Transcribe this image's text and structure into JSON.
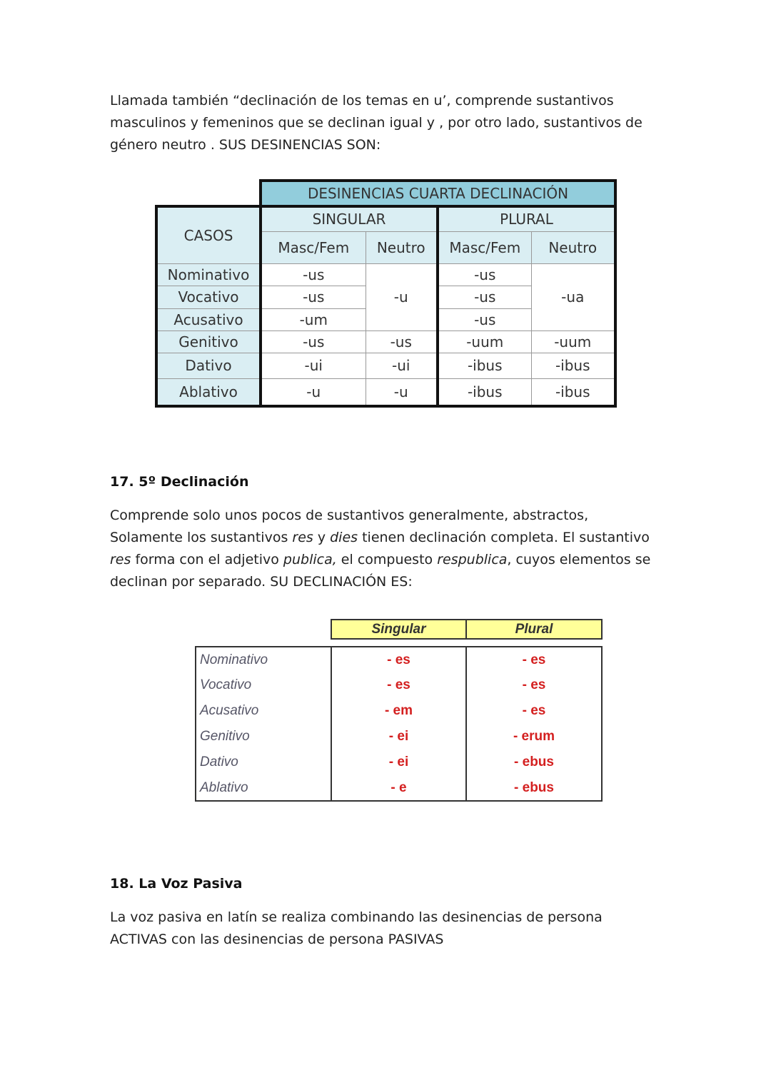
{
  "intro": "Llamada también “declinación de los temas en u’, comprende sustantivos masculinos y femeninos que se declinan igual y , por otro lado, sustantivos de género neutro . SUS DESINENCIAS SON:",
  "table1": {
    "title": "DESINENCIAS CUARTA DECLINACIÓN",
    "cases_header": "CASOS",
    "singular": "SINGULAR",
    "plural": "PLURAL",
    "subheaders": [
      "Masc/Fem",
      "Neutro",
      "Masc/Fem",
      "Neutro"
    ],
    "cases": [
      "Nominativo",
      "Vocativo",
      "Acusativo",
      "Genitivo",
      "Dativo",
      "Ablativo"
    ],
    "rows": [
      [
        "-us",
        "-u",
        "-us",
        "-ua"
      ],
      [
        "-us",
        "-us"
      ],
      [
        "-um",
        "-us"
      ],
      [
        "-us",
        "-us",
        "-uum",
        "-uum"
      ],
      [
        "-ui",
        "-ui",
        "-ibus",
        "-ibus"
      ],
      [
        "-u",
        "-u",
        "-ibus",
        "-ibus"
      ]
    ]
  },
  "section17": {
    "heading": "17. 5º Declinación",
    "paragraph": [
      {
        "text": "Comprende solo unos pocos de sustantivos generalmente, abstractos, Solamente los sustantivos ",
        "italic": false
      },
      {
        "text": "res",
        "italic": true
      },
      {
        "text": " y ",
        "italic": false
      },
      {
        "text": "dies",
        "italic": true
      },
      {
        "text": " tienen declinación completa. El sustantivo ",
        "italic": false
      },
      {
        "text": "res",
        "italic": true
      },
      {
        "text": " forma con el adjetivo ",
        "italic": false
      },
      {
        "text": "publica,",
        "italic": true
      },
      {
        "text": " el compuesto ",
        "italic": false
      },
      {
        "text": "respublica",
        "italic": true
      },
      {
        "text": ", cuyos elementos se declinan por separado. SU DECLINACIÓN ES:",
        "italic": false
      }
    ]
  },
  "table2": {
    "headers": [
      "Singular",
      "Plural"
    ],
    "rows": [
      [
        "Nominativo",
        "- es",
        "- es"
      ],
      [
        "Vocativo",
        "- es",
        "- es"
      ],
      [
        "Acusativo",
        "- em",
        "- es"
      ],
      [
        "Genitivo",
        "- ei",
        "- erum"
      ],
      [
        "Dativo",
        "- ei",
        "- ebus"
      ],
      [
        "Ablativo",
        "- e",
        "- ebus"
      ]
    ]
  },
  "section18": {
    "heading": "18. La Voz Pasiva",
    "paragraph": "La voz pasiva en latín se realiza combinando las desinencias de persona ACTIVAS con las desinencias de persona PASIVAS"
  }
}
